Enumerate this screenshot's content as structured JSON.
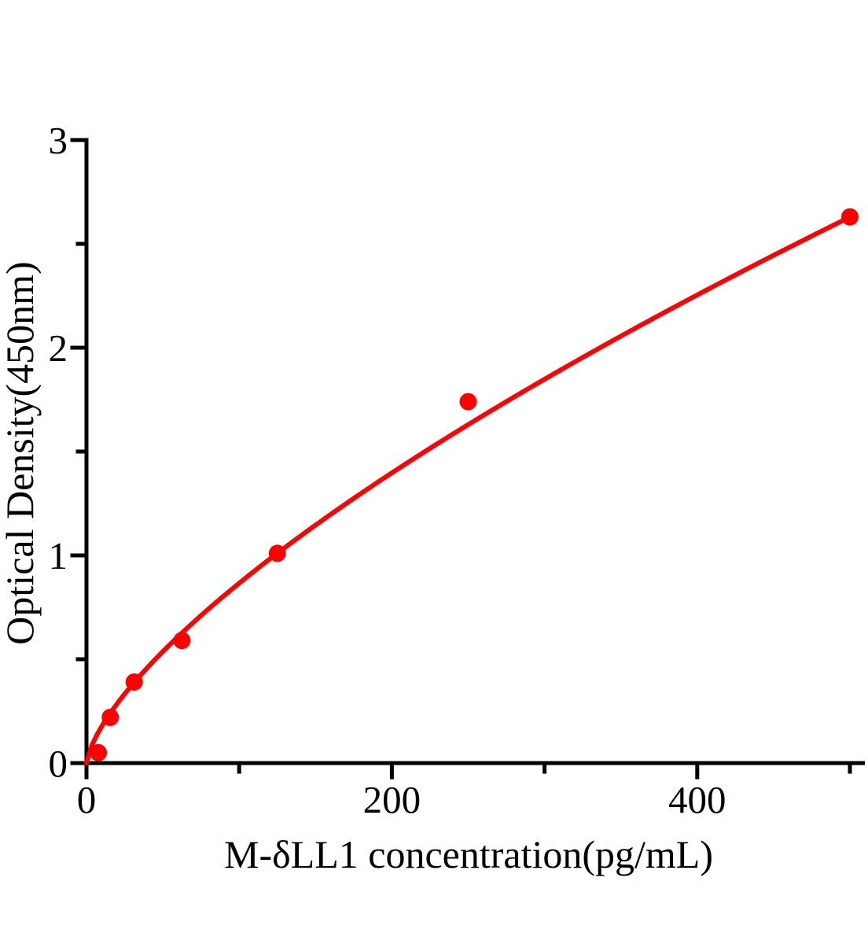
{
  "chart_data": {
    "type": "scatter",
    "title": "",
    "xlabel": "M-δLL1 concentration(pg/mL)",
    "ylabel": "Optical Density(450nm)",
    "x": [
      7.8,
      15.6,
      31.25,
      62.5,
      125,
      250,
      500
    ],
    "y": [
      0.05,
      0.22,
      0.39,
      0.59,
      1.01,
      1.74,
      2.63
    ],
    "xlim": [
      0,
      510
    ],
    "ylim": [
      0,
      3
    ],
    "x_major_ticks": [
      0,
      200,
      400
    ],
    "x_major_tick_labels": [
      "0",
      "200",
      "400"
    ],
    "x_minor_ticks": [
      100,
      300,
      500
    ],
    "y_major_ticks": [
      0,
      1,
      2,
      3
    ],
    "y_major_tick_labels": [
      "0",
      "1",
      "2",
      "3"
    ],
    "y_minor_ticks": [
      0.5,
      1.5,
      2.5
    ],
    "grid": false,
    "legend": false,
    "marker_color": "#ff0000",
    "line_color": "#ff0000",
    "axis_color": "#000000",
    "background_color": "#ffffff",
    "fit_curve": {
      "type": "power",
      "a": 0.0361,
      "b": 0.69,
      "x_range": [
        0,
        500
      ]
    }
  }
}
